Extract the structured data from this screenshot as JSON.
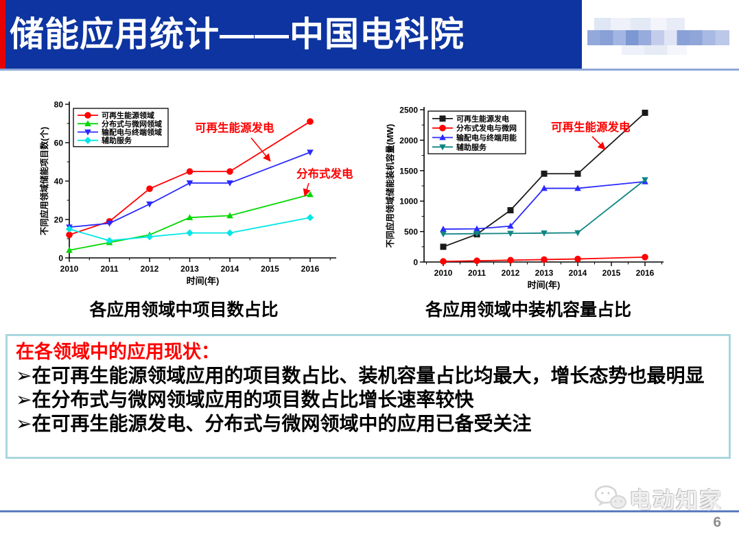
{
  "header": {
    "title": "储能应用统计——中国电科院"
  },
  "colors": {
    "header_bg": "#0d34a0",
    "header_accent": "#e60000",
    "summary_title_color": "#ff0000",
    "box_border": "#a9d6de",
    "footer_line": "#5b7cc0"
  },
  "chart_data": [
    {
      "type": "line",
      "caption": "各应用领域中项目数占比",
      "x": [
        2010,
        2011,
        2012,
        2013,
        2014,
        2016
      ],
      "x_axis_ticks": [
        2010,
        2011,
        2012,
        2013,
        2014,
        2015,
        2016
      ],
      "xlabel": "时间(年)",
      "ylabel": "不同应用领域储能项目数(个)",
      "ylim": [
        0,
        80
      ],
      "yticks": [
        0,
        20,
        40,
        60,
        80
      ],
      "y_minor_step": 10,
      "grid": false,
      "legend_position": "top-left",
      "series": [
        {
          "name": "可再生能源领域",
          "color": "#ff0000",
          "marker": "circle",
          "values": [
            12,
            19,
            36,
            45,
            45,
            71
          ]
        },
        {
          "name": "分布式与微网领域",
          "color": "#00d800",
          "marker": "triangle-up",
          "values": [
            4,
            8,
            12,
            21,
            22,
            33
          ]
        },
        {
          "name": "输配电与终端领域",
          "color": "#2a2aff",
          "marker": "triangle-down",
          "values": [
            16,
            18,
            28,
            39,
            39,
            55
          ]
        },
        {
          "name": "辅助服务",
          "color": "#00e6e6",
          "marker": "diamond",
          "values": [
            15,
            9,
            11,
            13,
            13,
            21
          ]
        }
      ],
      "annotations": [
        {
          "text": "可再生能源发电",
          "color": "#ff0000"
        },
        {
          "text": "分布式发电",
          "color": "#ff0000"
        }
      ]
    },
    {
      "type": "line",
      "caption": "各应用领域中装机容量占比",
      "x": [
        2010,
        2011,
        2012,
        2013,
        2014,
        2016
      ],
      "x_axis_ticks": [
        2010,
        2011,
        2012,
        2013,
        2014,
        2015,
        2016
      ],
      "xlabel": "时间(年)",
      "ylabel": "不同应用领域储能装机容量(MW)",
      "ylim": [
        0,
        2500
      ],
      "yticks": [
        0,
        500,
        1000,
        1500,
        2000,
        2500
      ],
      "y_minor_step": 250,
      "grid": false,
      "legend_position": "top-left",
      "series": [
        {
          "name": "可再生能源发电",
          "color": "#1a1a1a",
          "marker": "square",
          "values": [
            250,
            455,
            850,
            1450,
            1450,
            2450
          ]
        },
        {
          "name": "分布式发电与微网",
          "color": "#ff0000",
          "marker": "circle",
          "values": [
            10,
            20,
            30,
            40,
            50,
            80
          ]
        },
        {
          "name": "输配电与终端用能",
          "color": "#2a2aff",
          "marker": "triangle-up",
          "values": [
            540,
            545,
            590,
            1210,
            1210,
            1320
          ]
        },
        {
          "name": "辅助服务",
          "color": "#0e8585",
          "marker": "triangle-down",
          "values": [
            460,
            465,
            470,
            475,
            480,
            1350
          ]
        }
      ],
      "annotations": [
        {
          "text": "可再生能源发电",
          "color": "#ff0000"
        }
      ]
    }
  ],
  "summary": {
    "title": "在各领域中的应用现状：",
    "items": [
      "➢在可再生能源领域应用的项目数占比、装机容量占比均最大，增长态势也最明显",
      "➢在分布式与微网领域应用的项目数占比增长速率较快",
      "➢在可再生能源发电、分布式与微网领域中的应用已备受关注"
    ]
  },
  "footer": {
    "logo_text": "电动知家",
    "page_number": "6"
  }
}
